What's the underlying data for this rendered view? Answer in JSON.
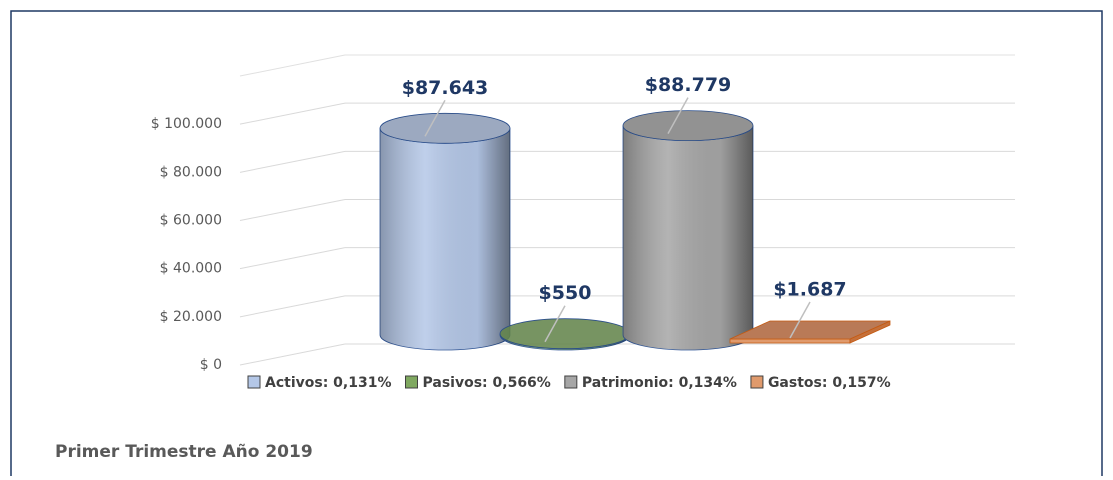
{
  "chart_data": {
    "type": "bar",
    "title": "Primer Trimestre Año 2019",
    "categories": [
      null
    ],
    "series": [
      {
        "name": "Activos: 0,131%",
        "color": "#b4c7e7",
        "values": [
          87643
        ],
        "value_labels": [
          "$87.643"
        ]
      },
      {
        "name": "Pasivos: 0,566%",
        "color": "#7fa860",
        "values": [
          550
        ],
        "value_labels": [
          "$550"
        ]
      },
      {
        "name": "Patrimonio: 0,134%",
        "color": "#a6a6a6",
        "values": [
          88779
        ],
        "value_labels": [
          "$88.779"
        ]
      },
      {
        "name": "Gastos: 0,157%",
        "color": "#e09a6c",
        "values": [
          1687
        ],
        "value_labels": [
          "$1.687"
        ]
      }
    ],
    "ylim": [
      0,
      120000
    ],
    "yticks": [
      {
        "value": 0,
        "label": "$ 0"
      },
      {
        "value": 20000,
        "label": "$ 20.000"
      },
      {
        "value": 40000,
        "label": "$ 40.000"
      },
      {
        "value": 60000,
        "label": "$ 60.000"
      },
      {
        "value": 80000,
        "label": "$ 80.000"
      },
      {
        "value": 100000,
        "label": "$ 100.000"
      }
    ],
    "grid": true
  }
}
